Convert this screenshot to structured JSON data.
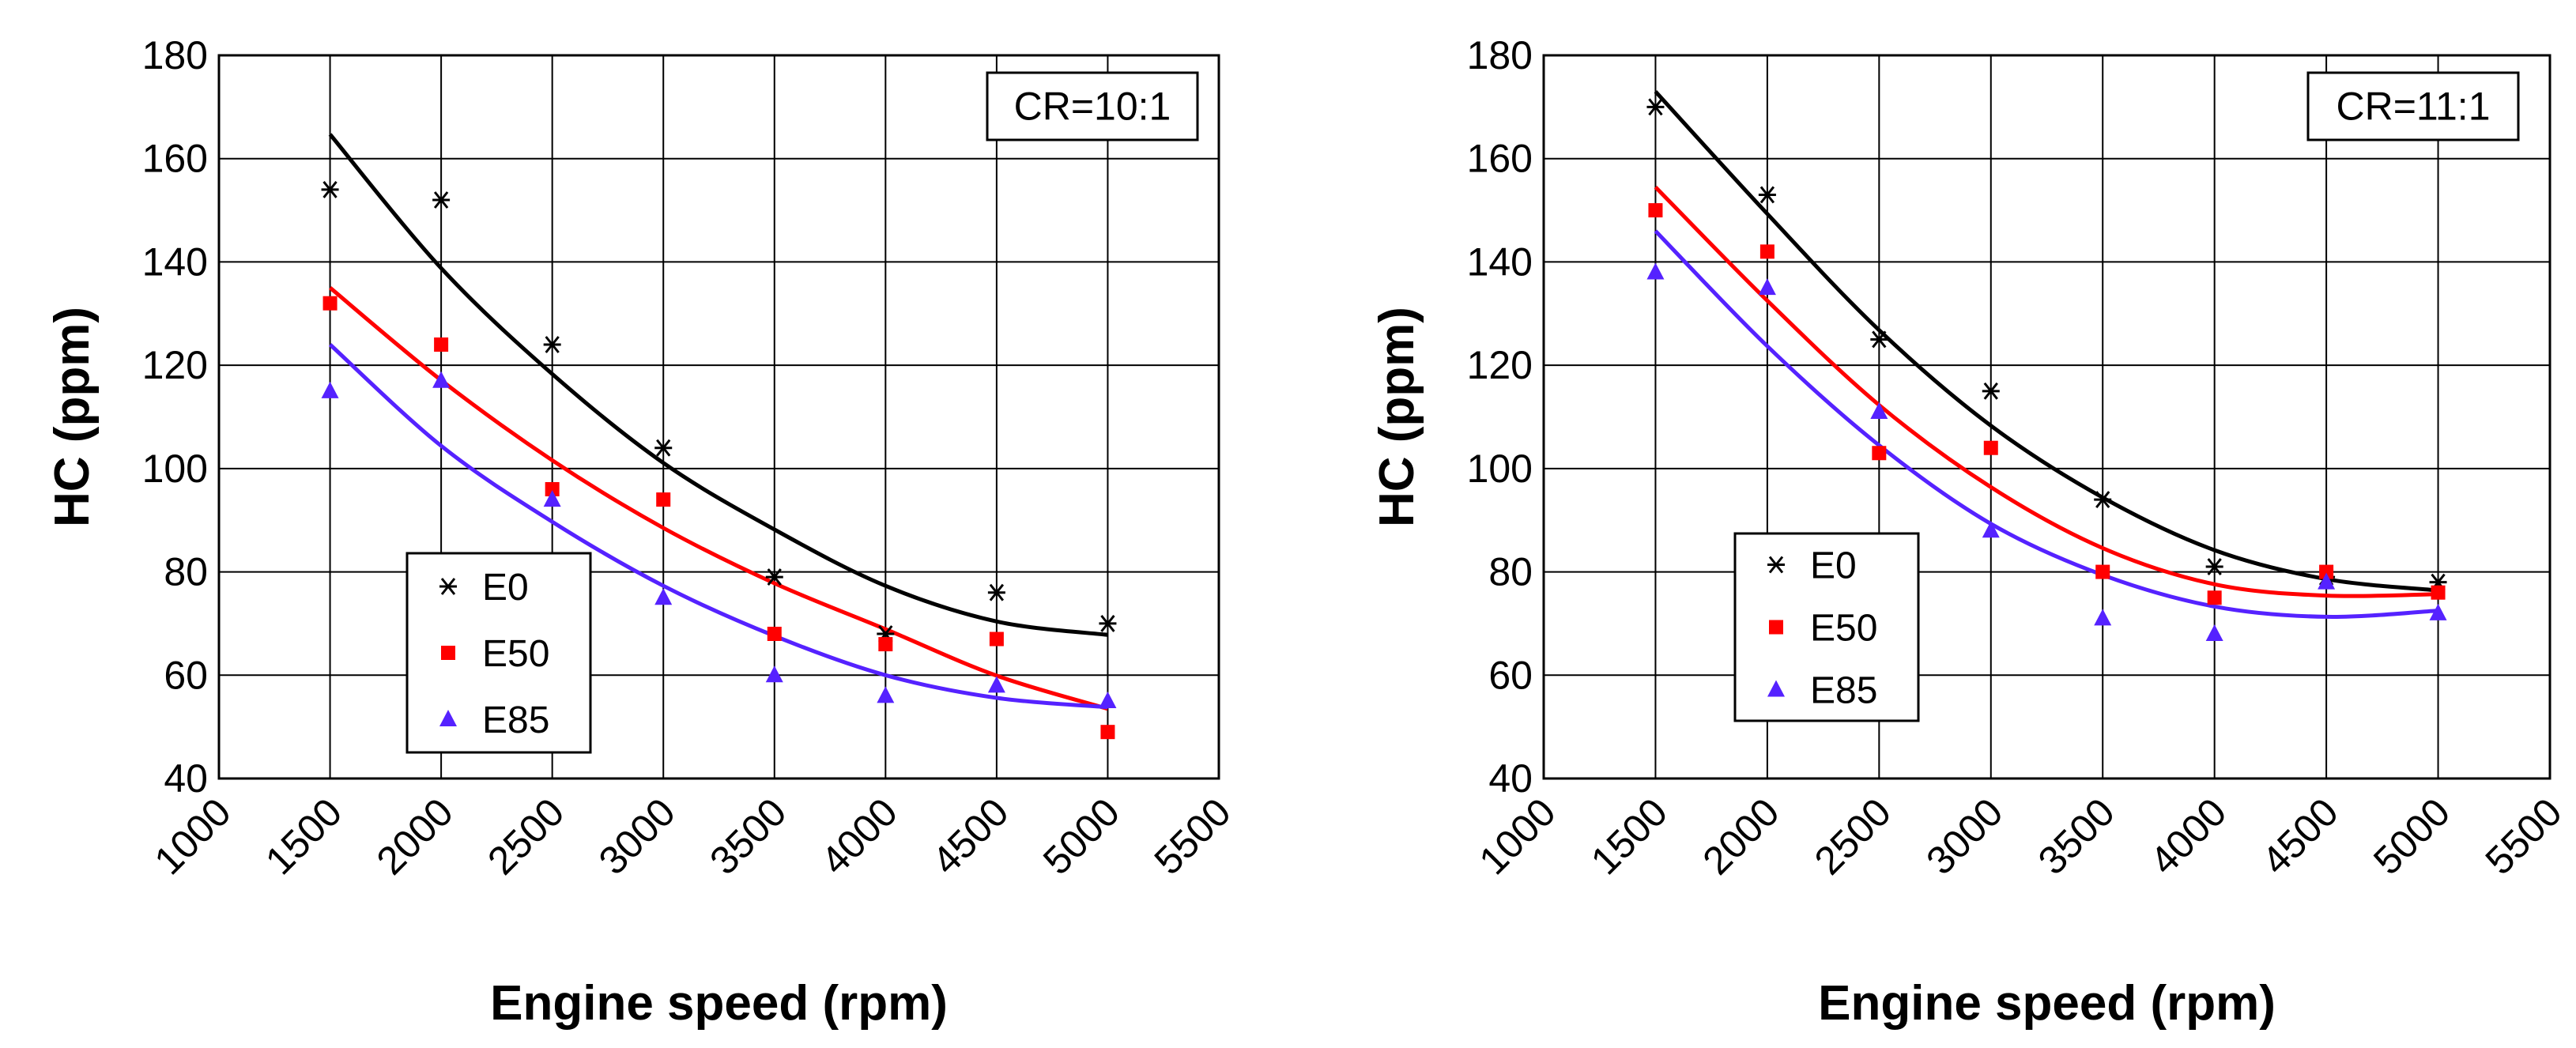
{
  "chart_data": [
    {
      "type": "scatter",
      "title": "",
      "annotation": "CR=10:1",
      "xlabel": "Engine speed (rpm)",
      "ylabel": "HC (ppm)",
      "xlim": [
        1000,
        5500
      ],
      "ylim": [
        40,
        180
      ],
      "x_ticks": [
        "1000",
        "1500",
        "2000",
        "2500",
        "3000",
        "3500",
        "4000",
        "4500",
        "5000",
        "5500"
      ],
      "y_ticks": [
        "40",
        "60",
        "80",
        "100",
        "120",
        "140",
        "160",
        "180"
      ],
      "grid": true,
      "legend_position": "lower-left",
      "x": [
        1500,
        2000,
        2500,
        3000,
        3500,
        4000,
        4500,
        5000
      ],
      "series": [
        {
          "name": "E0",
          "marker": "asterisk",
          "color": "#000000",
          "values": [
            154,
            152,
            124,
            104,
            79,
            68,
            76,
            70
          ],
          "trend": [
            164.7,
            138.8,
            118.3,
            101.1,
            88.2,
            77.3,
            70.4,
            67.8
          ]
        },
        {
          "name": "E50",
          "marker": "square",
          "color": "#ff0000",
          "values": [
            132,
            124,
            96,
            94,
            68,
            66,
            67,
            49
          ],
          "trend": [
            135,
            117.1,
            101.6,
            88.5,
            77.8,
            68.9,
            59.9,
            53.5
          ]
        },
        {
          "name": "E85",
          "marker": "triangle",
          "color": "#5522ff",
          "values": [
            115,
            117,
            94,
            75,
            60,
            56,
            58,
            55
          ],
          "trend": [
            124,
            104.4,
            89.7,
            77.3,
            67.6,
            60,
            55.6,
            53.8
          ]
        }
      ]
    },
    {
      "type": "scatter",
      "title": "",
      "annotation": "CR=11:1",
      "xlabel": "Engine speed (rpm)",
      "ylabel": "HC (ppm)",
      "xlim": [
        1000,
        5500
      ],
      "ylim": [
        40,
        180
      ],
      "x_ticks": [
        "1000",
        "1500",
        "2000",
        "2500",
        "3000",
        "3500",
        "4000",
        "4500",
        "5000",
        "5500"
      ],
      "y_ticks": [
        "40",
        "60",
        "80",
        "100",
        "120",
        "140",
        "160",
        "180"
      ],
      "grid": true,
      "legend_position": "lower-left",
      "x": [
        1500,
        2000,
        2500,
        3000,
        3500,
        4000,
        4500,
        5000
      ],
      "series": [
        {
          "name": "E0",
          "marker": "asterisk",
          "color": "#000000",
          "values": [
            170,
            153,
            125,
            115,
            94,
            81,
            79,
            78
          ],
          "trend": [
            173,
            149.3,
            126.8,
            108.3,
            94.4,
            84.2,
            78.6,
            76.4
          ]
        },
        {
          "name": "E50",
          "marker": "square",
          "color": "#ff0000",
          "values": [
            150,
            142,
            103,
            104,
            80,
            75,
            80,
            76
          ],
          "trend": [
            154.5,
            132.5,
            112.3,
            96.4,
            84.6,
            77.6,
            75.4,
            75.7
          ]
        },
        {
          "name": "E85",
          "marker": "triangle",
          "color": "#5522ff",
          "values": [
            138,
            135,
            111,
            88,
            71,
            68,
            78,
            72
          ],
          "trend": [
            146,
            123.7,
            104.5,
            89.3,
            79.4,
            73.3,
            71.3,
            72.5
          ]
        }
      ]
    }
  ]
}
